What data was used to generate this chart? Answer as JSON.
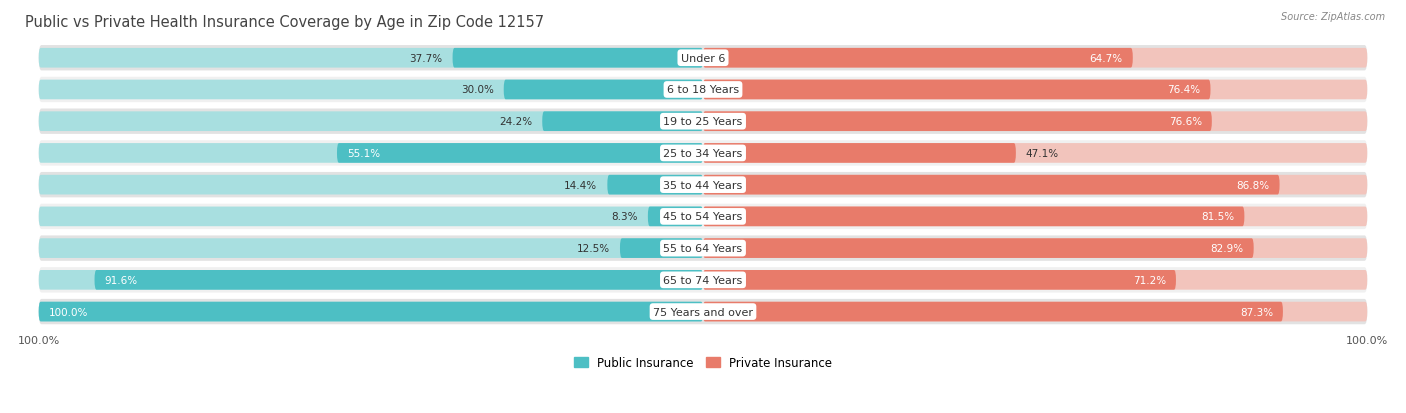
{
  "title": "Public vs Private Health Insurance Coverage by Age in Zip Code 12157",
  "source": "Source: ZipAtlas.com",
  "categories": [
    "Under 6",
    "6 to 18 Years",
    "19 to 25 Years",
    "25 to 34 Years",
    "35 to 44 Years",
    "45 to 54 Years",
    "55 to 64 Years",
    "65 to 74 Years",
    "75 Years and over"
  ],
  "public_values": [
    37.7,
    30.0,
    24.2,
    55.1,
    14.4,
    8.3,
    12.5,
    91.6,
    100.0
  ],
  "private_values": [
    64.7,
    76.4,
    76.6,
    47.1,
    86.8,
    81.5,
    82.9,
    71.2,
    87.3
  ],
  "public_color": "#4dbfc4",
  "private_color": "#e87b6a",
  "public_color_light": "#a8dfe0",
  "private_color_light": "#f2c4bc",
  "row_bg_light": "#f0f0f0",
  "row_bg_dark": "#e2e2e2",
  "fig_bg": "#ffffff",
  "title_color": "#444444",
  "title_fontsize": 10.5,
  "label_fontsize": 8,
  "value_fontsize": 7.5,
  "max_value": 100.0,
  "figsize": [
    14.06,
    4.14
  ],
  "dpi": 100
}
